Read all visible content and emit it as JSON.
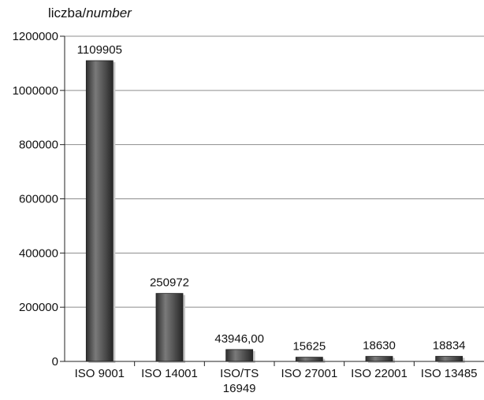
{
  "chart_data": {
    "type": "bar",
    "ylabel_prefix": "liczba/",
    "ylabel_italic": "number",
    "categories": [
      "ISO 9001",
      "ISO 14001",
      "ISO/TS 16949",
      "ISO 27001",
      "ISO 22001",
      "ISO 13485"
    ],
    "values": [
      1109905,
      250972,
      43946,
      15625,
      18630,
      18834
    ],
    "data_labels": [
      "1109905",
      "250972",
      "43946,00",
      "15625",
      "18630",
      "18834"
    ],
    "ylim": [
      0,
      1200000
    ],
    "yticks": [
      0,
      200000,
      400000,
      600000,
      800000,
      1000000,
      1200000
    ],
    "ytick_labels": [
      "0",
      "200000",
      "400000",
      "600000",
      "800000",
      "1000000",
      "1200000"
    ],
    "grid": true,
    "bar_color": "#555555",
    "grid_color": "#8c8c8c"
  }
}
